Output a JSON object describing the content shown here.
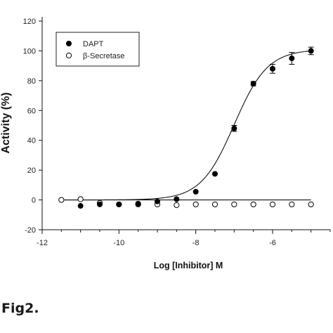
{
  "caption": "Fig2.",
  "chart_data": {
    "type": "scatter",
    "xlabel": "Log [Inhibitor] M",
    "ylabel": "Activity (%)",
    "xlim": [
      -12,
      -4.5
    ],
    "ylim": [
      -20,
      120
    ],
    "xticks": [
      -12,
      -10,
      -8,
      -6
    ],
    "yticks": [
      -20,
      0,
      20,
      40,
      60,
      80,
      100,
      120
    ],
    "grid": false,
    "legend_position": "top-left",
    "series": [
      {
        "name": "DAPT",
        "marker": "filled-circle",
        "color": "#000000",
        "x": [
          -11.0,
          -10.5,
          -10.0,
          -9.5,
          -9.0,
          -8.5,
          -8.0,
          -7.5,
          -7.0,
          -6.5,
          -6.0,
          -5.5,
          -5.0
        ],
        "y": [
          -4,
          -3,
          -3,
          -2.5,
          -1,
          0.5,
          5.5,
          17.5,
          48,
          78,
          88,
          95,
          100
        ],
        "error": [
          0,
          0,
          0,
          0,
          0,
          0,
          0,
          0,
          2,
          1.5,
          3,
          4,
          2.5
        ],
        "fit": {
          "bottom": 0,
          "top": 101,
          "logEC50": -7.0,
          "hill": 1.0,
          "x_range": [
            -11.5,
            -5.0
          ]
        }
      },
      {
        "name": "β-Secretase",
        "marker": "open-circle",
        "color": "#000000",
        "x": [
          -11.5,
          -11.0,
          -10.5,
          -10.0,
          -9.5,
          -9.0,
          -8.5,
          -8.0,
          -7.5,
          -7.0,
          -6.5,
          -6.0,
          -5.5,
          -5.0
        ],
        "y": [
          0,
          0.5,
          -2,
          -3,
          -3,
          -3,
          -3.5,
          -3,
          -3,
          -3,
          -3,
          -3,
          -3,
          -3
        ],
        "fit": {
          "constant": 0,
          "x_range": [
            -11.5,
            -5.0
          ]
        }
      }
    ]
  }
}
